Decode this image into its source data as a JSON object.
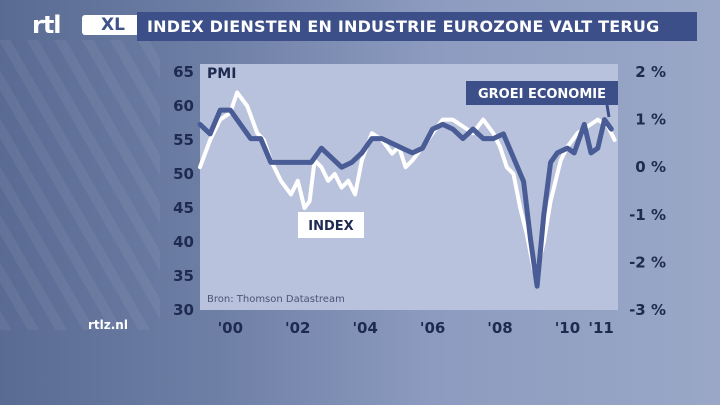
{
  "header": {
    "logo_rtl": "rtl",
    "logo_xl": "XL",
    "title": "INDEX DIENSTEN EN INDUSTRIE EUROZONE VALT TERUG",
    "site": "rtlz.nl"
  },
  "colors": {
    "title_bar": "#3d4f89",
    "plot_bg": "#b9c2dc",
    "index_line": "#ffffff",
    "growth_line": "#4a5c95"
  },
  "chart_data": {
    "type": "line",
    "source": "Bron: Thomson Datastream",
    "y_left": {
      "label": "PMI",
      "ticks": [
        "65",
        "60",
        "55",
        "50",
        "45",
        "40",
        "35",
        "30"
      ],
      "range": [
        30,
        65
      ]
    },
    "y_right": {
      "ticks": [
        "2 %",
        "1 %",
        "0 %",
        "-1 %",
        "-2 %",
        "-3 %"
      ],
      "range": [
        -3,
        2
      ]
    },
    "x_ticks": [
      "'00",
      "'02",
      "'04",
      "'06",
      "'08",
      "'10",
      "'11"
    ],
    "x_tick_values": [
      2000,
      2002,
      2004,
      2006,
      2008,
      2010,
      2011
    ],
    "x_range": [
      1999.1,
      2011.5
    ],
    "series": [
      {
        "name": "INDEX",
        "axis": "left",
        "x": [
          1999.1,
          1999.4,
          1999.7,
          2000.0,
          2000.2,
          2000.5,
          2000.8,
          2001.0,
          2001.2,
          2001.5,
          2001.8,
          2002.0,
          2002.2,
          2002.35,
          2002.5,
          2002.7,
          2002.9,
          2003.1,
          2003.3,
          2003.5,
          2003.7,
          2003.9,
          2004.2,
          2004.5,
          2004.8,
          2005.0,
          2005.2,
          2005.4,
          2005.7,
          2006.0,
          2006.3,
          2006.6,
          2006.9,
          2007.2,
          2007.5,
          2007.8,
          2008.0,
          2008.2,
          2008.4,
          2008.6,
          2008.8,
          2009.0,
          2009.15,
          2009.3,
          2009.5,
          2009.8,
          2010.0,
          2010.3,
          2010.6,
          2010.9,
          2011.2,
          2011.4
        ],
        "values": [
          51,
          55,
          58,
          59,
          62,
          60,
          56,
          55,
          52,
          49,
          47,
          49,
          45,
          46,
          52,
          51,
          49,
          50,
          48,
          49,
          47,
          52,
          56,
          55,
          53,
          54,
          51,
          52,
          54,
          56,
          58,
          58,
          57,
          56,
          58,
          56,
          54,
          51,
          50,
          45,
          41,
          36,
          37,
          40,
          46,
          52,
          54,
          56,
          57,
          58,
          57,
          55
        ]
      },
      {
        "name": "GROEI ECONOMIE",
        "axis": "right",
        "x": [
          1999.1,
          1999.4,
          1999.7,
          2000.0,
          2000.3,
          2000.6,
          2000.9,
          2001.2,
          2001.5,
          2001.8,
          2002.1,
          2002.4,
          2002.7,
          2003.0,
          2003.3,
          2003.6,
          2003.9,
          2004.2,
          2004.5,
          2004.8,
          2005.1,
          2005.4,
          2005.7,
          2006.0,
          2006.3,
          2006.6,
          2006.9,
          2007.2,
          2007.5,
          2007.8,
          2008.1,
          2008.4,
          2008.7,
          2008.9,
          2009.1,
          2009.3,
          2009.5,
          2009.7,
          2010.0,
          2010.2,
          2010.5,
          2010.7,
          2010.9,
          2011.1,
          2011.3
        ],
        "values": [
          0.9,
          0.7,
          1.2,
          1.2,
          0.9,
          0.6,
          0.6,
          0.1,
          0.1,
          0.1,
          0.1,
          0.1,
          0.4,
          0.2,
          0.0,
          0.1,
          0.3,
          0.6,
          0.6,
          0.5,
          0.4,
          0.3,
          0.4,
          0.8,
          0.9,
          0.8,
          0.6,
          0.8,
          0.6,
          0.6,
          0.7,
          0.2,
          -0.3,
          -1.5,
          -2.5,
          -1.0,
          0.1,
          0.3,
          0.4,
          0.3,
          0.9,
          0.3,
          0.4,
          1.0,
          0.8
        ]
      }
    ],
    "annotations": [
      "INDEX",
      "GROEI ECONOMIE"
    ]
  }
}
